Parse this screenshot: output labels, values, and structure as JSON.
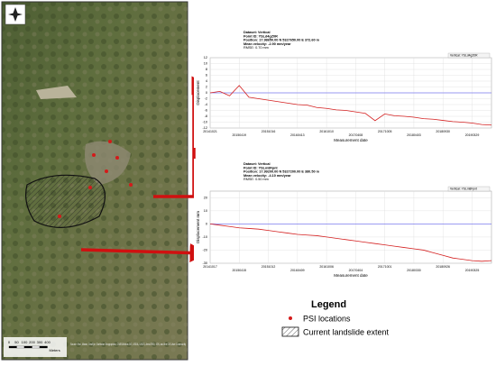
{
  "chart_data": [
    {
      "type": "line",
      "info": [
        "Dataset: Vertical",
        "Point ID: YSLd4gZ0R",
        "Position: 17.98650.00 N 5327650.00 E 372.60 m",
        "Mean velocity: -2.90 mm/year",
        "RMSE: 0.70 mm"
      ],
      "y_label": "Displacement",
      "x_label": "Measurement date",
      "x": [
        "20141021",
        "20141220",
        "20150218",
        "20150419",
        "20150618",
        "20150817",
        "20151016",
        "20151215",
        "20160213",
        "20160413",
        "20160612",
        "20160811",
        "20161010",
        "20161209",
        "20170207",
        "20170408",
        "20170607",
        "20170806",
        "20171005",
        "20171204",
        "20180202",
        "20180403",
        "20180602",
        "20180801",
        "20180930",
        "20181129",
        "20190128",
        "20190329",
        "20190528",
        "20190727"
      ],
      "xlim": [
        "20141021",
        "20190727"
      ],
      "xticks": [
        "20141021",
        "20150419",
        "20151016",
        "20160413",
        "20161010",
        "20170408",
        "20171005",
        "20180403",
        "20180930",
        "20190329"
      ],
      "series": [
        {
          "name": "Vertical: YSLd4gZ0R",
          "color": "#d42020",
          "values": [
            0,
            0.5,
            -1,
            2.5,
            -1.5,
            -2,
            -2.5,
            -3,
            -3.5,
            -4,
            -4.2,
            -5,
            -5.3,
            -5.8,
            -6,
            -6.5,
            -7,
            -9.5,
            -7.2,
            -7.8,
            -8,
            -8.3,
            -8.8,
            -9,
            -9.4,
            -9.8,
            -10,
            -10.3,
            -10.8,
            -11
          ]
        }
      ],
      "ylim": [
        -12,
        12
      ],
      "yticks": [
        12,
        10,
        8,
        6,
        4,
        2,
        0,
        -2,
        -4,
        -6,
        -8,
        -10,
        -12
      ],
      "reference_line": 0,
      "reference_color": "#7d7df0",
      "grid": true
    },
    {
      "type": "line",
      "info": [
        "Dataset: Vertical",
        "Point ID: YSLm8Fpnt",
        "Position: 17.99200.00 N 5327200.00 E 380.50 m",
        "Mean velocity: -4.10 mm/year",
        "RMSE: 0.50 mm"
      ],
      "y_label": "Displacement mm",
      "x_label": "Measurement date",
      "x": [
        "20141017",
        "20141216",
        "20150214",
        "20150415",
        "20150614",
        "20150813",
        "20151012",
        "20151211",
        "20160209",
        "20160409",
        "20160608",
        "20160807",
        "20161006",
        "20161205",
        "20170203",
        "20170404",
        "20170603",
        "20170802",
        "20171001",
        "20171130",
        "20180129",
        "20180330",
        "20180529",
        "20180728",
        "20180926",
        "20181125",
        "20190124",
        "20190325",
        "20190524",
        "20190723"
      ],
      "xlim": [
        "20141017",
        "20190723"
      ],
      "xticks": [
        "20141017",
        "20150415",
        "20151012",
        "20160409",
        "20161006",
        "20170404",
        "20171001",
        "20180330",
        "20180926",
        "20190325"
      ],
      "series": [
        {
          "name": "Vertical: YSLm8Fpnt",
          "color": "#d42020",
          "values": [
            0,
            -1,
            -2,
            -3,
            -3.5,
            -4,
            -5,
            -6,
            -7,
            -8,
            -8.5,
            -9,
            -10,
            -11,
            -12,
            -13,
            -14,
            -15,
            -16,
            -17,
            -18,
            -19,
            -20,
            -22,
            -24,
            -26,
            -27,
            -28,
            -28.5,
            -28
          ]
        }
      ],
      "ylim": [
        -30,
        25
      ],
      "yticks": [
        20,
        10,
        0,
        -10,
        -20,
        -30
      ],
      "reference_line": 0,
      "reference_color": "#7d7df0",
      "grid": true
    }
  ],
  "legend": {
    "title": "Legend",
    "items": [
      "PSI locations",
      "Current landslide extent"
    ]
  },
  "map": {
    "north": "N",
    "scale": [
      "0",
      "50",
      "100",
      "200",
      "300",
      "400"
    ],
    "scale_unit": "Meters",
    "attribution": "Source: Esri, Maxar, GeoEye, Earthstar Geographics, CNES/Airbus DS, USDA, USGS, AeroGRID, IGN, and the GIS User Community"
  }
}
